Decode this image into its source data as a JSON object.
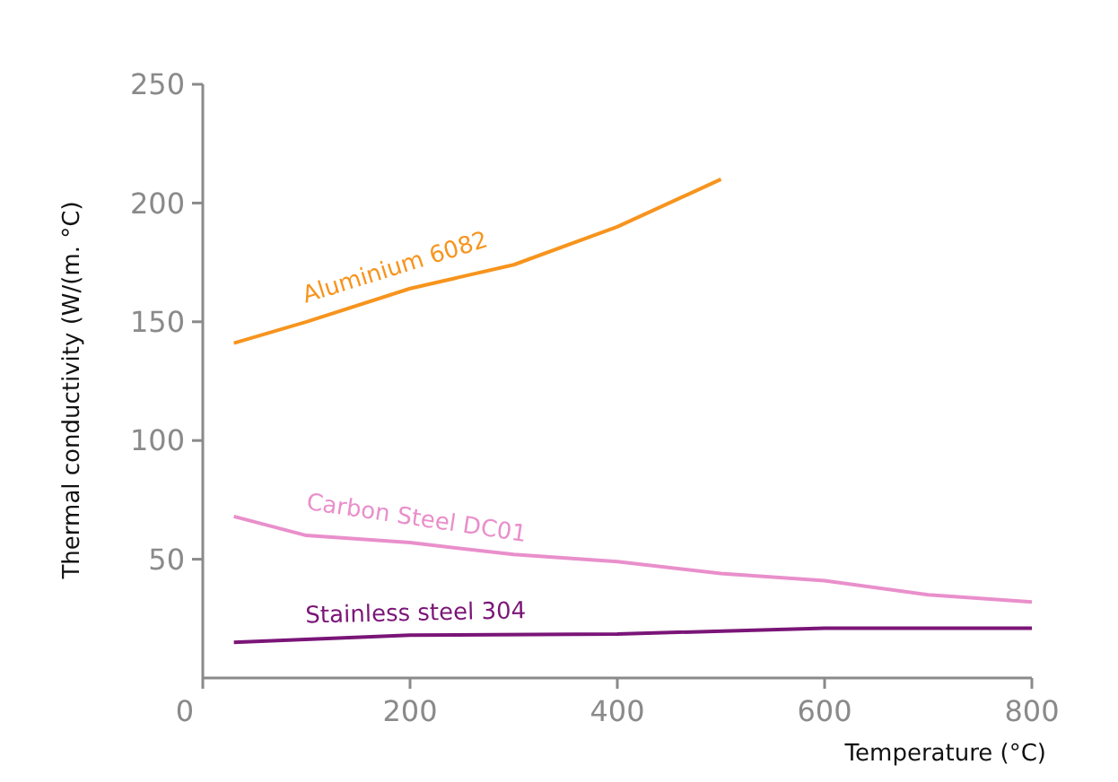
{
  "chart_data": {
    "type": "line",
    "xlabel": "Temperature (°C)",
    "ylabel": "Thermal conductivity (W/(m. °C)",
    "xlim": [
      0,
      800
    ],
    "ylim": [
      0,
      250
    ],
    "xticks": [
      0,
      200,
      400,
      600,
      800
    ],
    "yticks": [
      50,
      100,
      150,
      200,
      250
    ],
    "grid": false,
    "marker": "none",
    "line_style": "solid",
    "series": [
      {
        "name": "Aluminium 6082",
        "color": "#f7941d",
        "x": [
          30,
          100,
          200,
          300,
          400,
          500
        ],
        "values": [
          141,
          150,
          164,
          174,
          190,
          210
        ]
      },
      {
        "name": "Carbon Steel DC01",
        "color": "#e98fcb",
        "x": [
          30,
          100,
          200,
          300,
          400,
          500,
          600,
          700,
          800
        ],
        "values": [
          68,
          60,
          57,
          52,
          49,
          44,
          41,
          35,
          32
        ]
      },
      {
        "name": "Stainless steel 304",
        "color": "#7a1577",
        "x": [
          30,
          200,
          400,
          600,
          800
        ],
        "values": [
          15,
          18,
          18.5,
          21,
          21
        ]
      }
    ]
  }
}
